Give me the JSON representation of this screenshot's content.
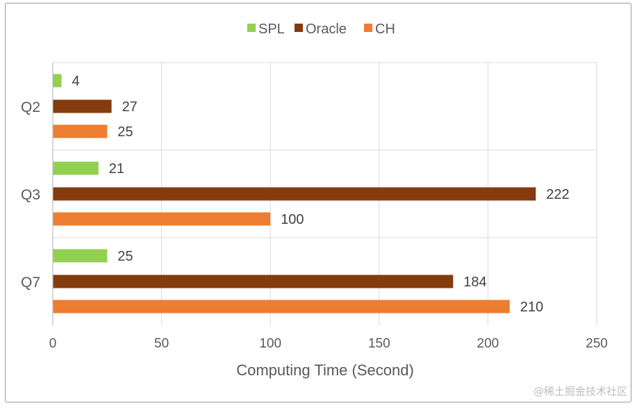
{
  "chart_data": {
    "type": "bar",
    "orientation": "horizontal",
    "categories": [
      "Q2",
      "Q3",
      "Q7"
    ],
    "series": [
      {
        "name": "SPL",
        "color": "#92d050",
        "values": [
          4,
          21,
          25
        ]
      },
      {
        "name": "Oracle",
        "color": "#843c0c",
        "values": [
          27,
          222,
          184
        ]
      },
      {
        "name": "CH",
        "color": "#ed7d31",
        "values": [
          25,
          100,
          210
        ]
      }
    ],
    "xlabel": "Computing Time (Second)",
    "ylabel": "",
    "xlim": [
      0,
      250
    ],
    "xticks": [
      0,
      50,
      100,
      150,
      200,
      250
    ],
    "grid": true,
    "legend": "top",
    "data_labels": true
  },
  "watermark": "@稀土掘金技术社区"
}
